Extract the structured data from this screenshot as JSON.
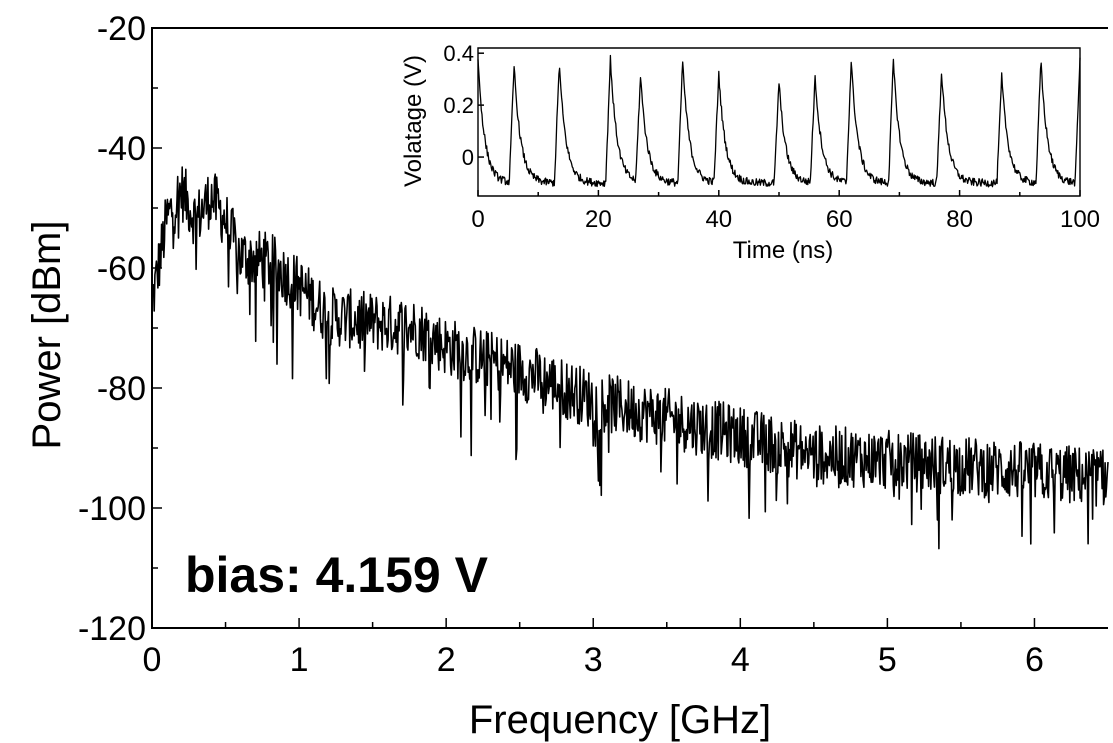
{
  "chart_data": [
    {
      "type": "line",
      "xlabel": "Frequency [GHz]",
      "ylabel": "Power [dBm]",
      "xlim": [
        0,
        6.5
      ],
      "ylim": [
        -120,
        -20
      ],
      "xticks": [
        0,
        1,
        2,
        3,
        4,
        5,
        6
      ],
      "yticks": [
        -120,
        -100,
        -80,
        -60,
        -40,
        -20
      ],
      "xtick_labels": [
        "0",
        "1",
        "2",
        "3",
        "4",
        "5",
        "6"
      ],
      "ytick_labels": [
        "-120",
        "-100",
        "-80",
        "-60",
        "-40",
        "-20"
      ],
      "grid": false,
      "annotation": "bias: 4.159 V",
      "series": [
        {
          "x": [
            0,
            0.1,
            0.2,
            0.3,
            0.4,
            0.5,
            0.6,
            0.8,
            1.0,
            1.2,
            1.5,
            1.8,
            2.0,
            2.5,
            3.0,
            3.5,
            4.0,
            4.5,
            5.0,
            5.5,
            6.0,
            6.5
          ],
          "values": [
            -66,
            -52,
            -47,
            -52,
            -48,
            -52,
            -58,
            -59,
            -63,
            -68,
            -69,
            -70,
            -73,
            -77,
            -82,
            -85,
            -88,
            -91,
            -92,
            -93,
            -94,
            -95
          ],
          "noise_dB": 5
        }
      ]
    },
    {
      "type": "line",
      "inset": true,
      "xlabel": "Time (ns)",
      "ylabel": "Volatage (V)",
      "xlim": [
        0,
        100
      ],
      "ylim": [
        -0.15,
        0.42
      ],
      "xticks": [
        0,
        20,
        40,
        60,
        80,
        100
      ],
      "yticks": [
        0,
        0.2,
        0.4
      ],
      "xtick_labels": [
        "0",
        "20",
        "40",
        "60",
        "80",
        "100"
      ],
      "ytick_labels": [
        "0",
        "0.2",
        "0.4"
      ],
      "grid": false,
      "baseline": -0.1,
      "pulse_times": [
        0,
        6,
        13.5,
        22,
        27,
        34,
        40,
        50,
        56,
        62,
        69,
        77,
        87,
        93.5,
        100
      ],
      "pulse_peaks": [
        0.38,
        0.35,
        0.36,
        0.38,
        0.31,
        0.37,
        0.32,
        0.29,
        0.31,
        0.37,
        0.37,
        0.33,
        0.31,
        0.37,
        0.38
      ]
    }
  ]
}
